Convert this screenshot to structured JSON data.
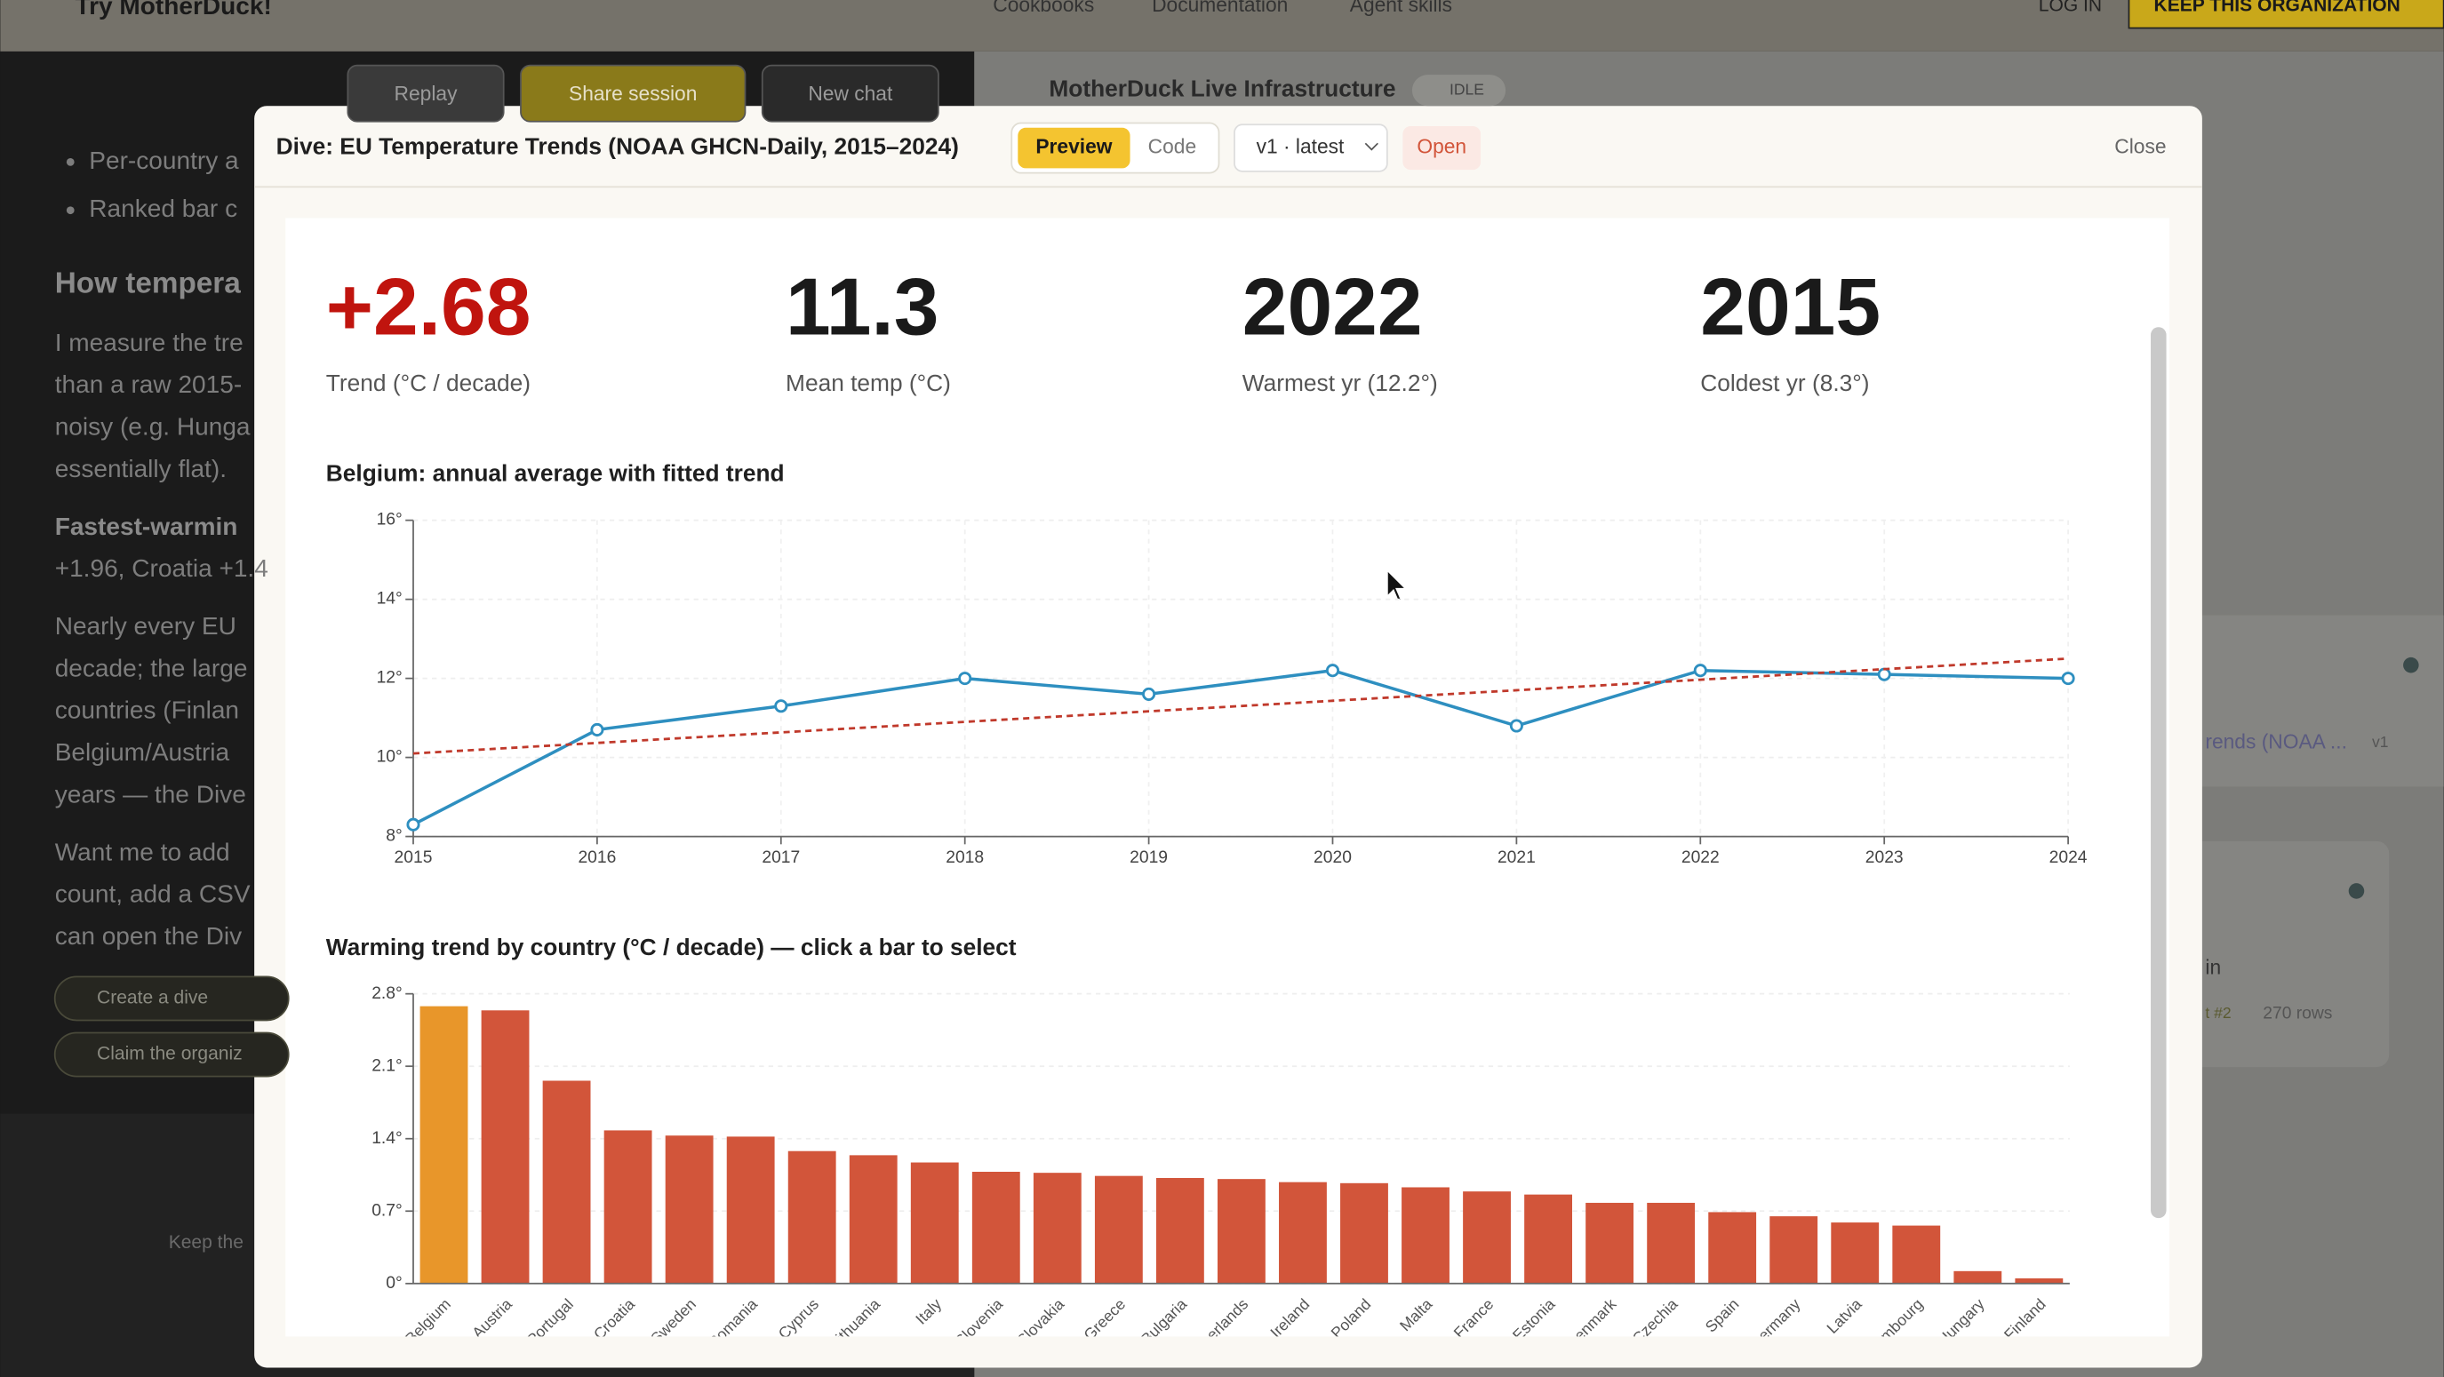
{
  "app": {
    "brand": "Try MotherDuck!",
    "nav": [
      "Cookbooks",
      "Documentation",
      "Agent skills"
    ],
    "login": "LOG IN",
    "keep": "KEEP THIS ORGANIZATION",
    "toolbar": [
      "Replay",
      "Share session",
      "New chat"
    ],
    "infra": "MotherDuck Live Infrastructure",
    "status": "IDLE"
  },
  "chat": {
    "lines": [
      "Per-country a",
      "Ranked bar c",
      "How tempera",
      "I measure the tre",
      "than a raw 2015-",
      "noisy (e.g. Hunga",
      "essentially flat).",
      "Fastest-warmin",
      "+1.96, Croatia +1.4",
      "Nearly every EU",
      "decade; the large",
      "countries (Finlan",
      "Belgium/Austria",
      "years — the Dive",
      "Want me to add",
      "count, add a CSV",
      "can open the Div"
    ],
    "buttons": [
      "Create a dive",
      "Claim the organiz"
    ],
    "footer": "Keep the"
  },
  "side": {
    "items": [
      "rends (NOAA ...",
      "v1",
      "in",
      "t #2",
      "270 rows"
    ]
  },
  "modal": {
    "title": "Dive: EU Temperature Trends (NOAA GHCN-Daily, 2015–2024)",
    "tabs": [
      "Preview",
      "Code"
    ],
    "version": "v1 · latest",
    "open": "Open",
    "close": "Close"
  },
  "kpis": [
    {
      "value": "+2.68",
      "label": "Trend (°C / decade)"
    },
    {
      "value": "11.3",
      "label": "Mean temp (°C)"
    },
    {
      "value": "2022",
      "label": "Warmest yr (12.2°)"
    },
    {
      "value": "2015",
      "label": "Coldest yr (8.3°)"
    }
  ],
  "chart_data": [
    {
      "type": "line",
      "title": "Belgium: annual average with fitted trend",
      "x": [
        2015,
        2016,
        2017,
        2018,
        2019,
        2020,
        2021,
        2022,
        2023,
        2024
      ],
      "series": [
        {
          "color": "#2e8fc0",
          "values": [
            8.3,
            10.7,
            11.3,
            12.0,
            11.6,
            12.2,
            10.8,
            12.2,
            12.1,
            12.0
          ]
        },
        {
          "color": "#c0392b",
          "dashed": true,
          "x": [
            2015,
            2024
          ],
          "values": [
            10.1,
            12.5
          ]
        }
      ],
      "xlim": [
        2015,
        2024
      ],
      "xticks": [
        2015,
        2016,
        2017,
        2018,
        2019,
        2020,
        2021,
        2022,
        2023,
        2024
      ],
      "ylim": [
        8,
        16
      ],
      "yticks": [
        {
          "value": 8,
          "label": "8°"
        },
        {
          "value": 10,
          "label": "10°"
        },
        {
          "value": 12,
          "label": "12°"
        },
        {
          "value": 14,
          "label": "14°"
        },
        {
          "value": 16,
          "label": "16°"
        }
      ],
      "grid": true
    },
    {
      "type": "bar",
      "title": "Warming trend by country (°C / decade) — click a bar to select",
      "categories": [
        "Belgium",
        "Austria",
        "Portugal",
        "Croatia",
        "Sweden",
        "Romania",
        "Cyprus",
        "Lithuania",
        "Italy",
        "Slovenia",
        "Slovakia",
        "Greece",
        "Bulgaria",
        "Netherlands",
        "Ireland",
        "Poland",
        "Malta",
        "France",
        "Estonia",
        "Denmark",
        "Czechia",
        "Spain",
        "Germany",
        "Latvia",
        "Luxembourg",
        "Hungary",
        "Finland"
      ],
      "values": [
        2.68,
        2.64,
        1.96,
        1.48,
        1.43,
        1.42,
        1.28,
        1.24,
        1.17,
        1.08,
        1.07,
        1.04,
        1.02,
        1.01,
        0.98,
        0.97,
        0.93,
        0.89,
        0.86,
        0.78,
        0.78,
        0.69,
        0.65,
        0.59,
        0.56,
        0.12,
        0.05
      ],
      "color": "#d2553a",
      "selected_color": "#e8962a",
      "selected": "Belgium",
      "ylim": [
        0,
        2.8
      ],
      "yticks": [
        {
          "value": 0,
          "label": "0°"
        },
        {
          "value": 0.7,
          "label": "0.7°"
        },
        {
          "value": 1.4,
          "label": "1.4°"
        },
        {
          "value": 2.1,
          "label": "2.1°"
        },
        {
          "value": 2.8,
          "label": "2.8°"
        }
      ],
      "grid": true
    }
  ]
}
